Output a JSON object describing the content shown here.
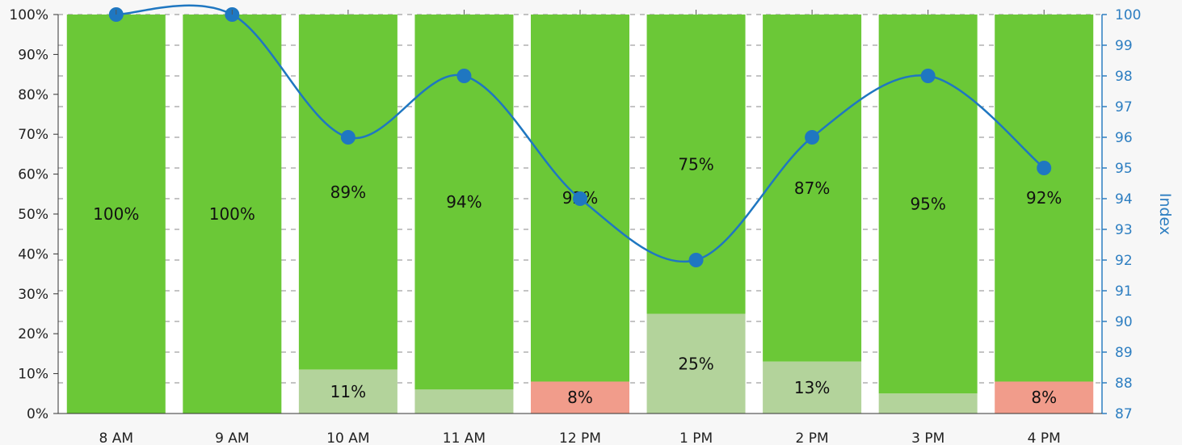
{
  "chart_data": {
    "type": "bar",
    "stacked": true,
    "categories": [
      "8 AM",
      "9 AM",
      "10 AM",
      "11 AM",
      "12 PM",
      "1 PM",
      "2 PM",
      "3 PM",
      "4 PM"
    ],
    "series": [
      {
        "values": [
          100,
          100,
          89,
          94,
          92,
          75,
          87,
          95,
          92
        ],
        "labels": [
          "100%",
          "100%",
          "89%",
          "94%",
          "92%",
          "75%",
          "87%",
          "95%",
          "92%"
        ],
        "color": "#6bc837"
      },
      {
        "values": [
          0,
          0,
          11,
          6,
          8,
          25,
          13,
          5,
          8
        ],
        "labels": [
          "",
          "",
          "11%",
          "",
          "8%",
          "25%",
          "13%",
          "",
          "8%"
        ],
        "colors": [
          "#b3d39b",
          "#b3d39b",
          "#b3d39b",
          "#b3d39b",
          "#f19c8b",
          "#b3d39b",
          "#b3d39b",
          "#b3d39b",
          "#f19c8b"
        ]
      }
    ],
    "line": {
      "values": [
        100,
        100,
        96,
        98,
        94,
        92,
        96,
        98,
        95
      ],
      "color": "#1f77c1"
    },
    "y_left": {
      "lim": [
        0,
        100
      ],
      "ticks": [
        "0%",
        "10%",
        "20%",
        "30%",
        "40%",
        "50%",
        "60%",
        "70%",
        "80%",
        "90%",
        "100%"
      ]
    },
    "y_right": {
      "label": "Index",
      "lim": [
        87,
        100
      ],
      "ticks": [
        "87",
        "88",
        "89",
        "90",
        "91",
        "92",
        "93",
        "94",
        "95",
        "96",
        "97",
        "98",
        "99",
        "100"
      ]
    },
    "grid": true,
    "legend": "none"
  }
}
